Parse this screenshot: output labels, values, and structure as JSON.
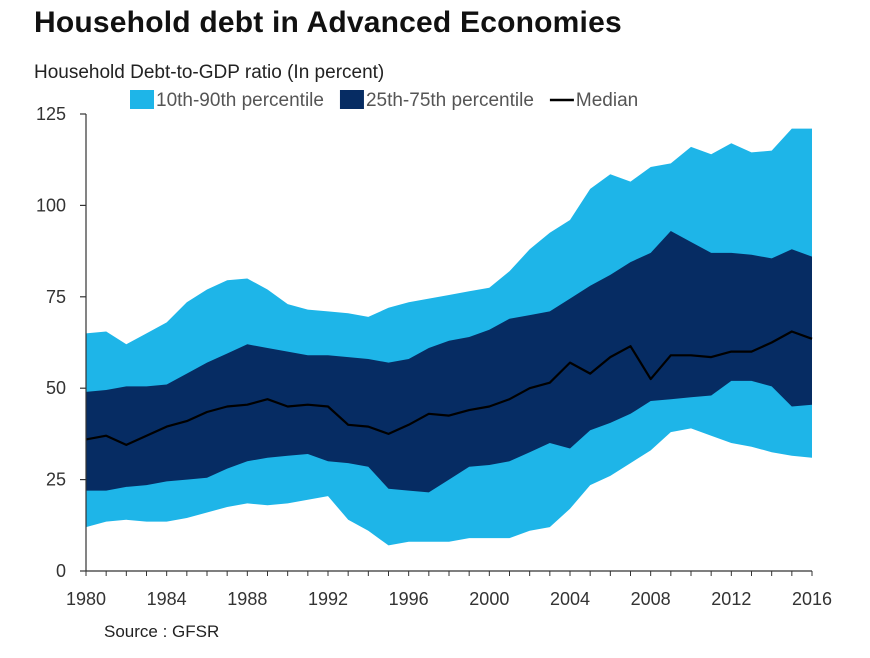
{
  "header": {
    "title": "Household debt in Advanced Economies",
    "subtitle": "Household Debt-to-GDP ratio (In percent)"
  },
  "footer": {
    "source": "Source : GFSR"
  },
  "colors": {
    "outer_band": "#1eb5e8",
    "inner_band": "#062c63",
    "median": "#000000",
    "axis": "#333333"
  },
  "chart_data": {
    "type": "area",
    "title": "Household debt in Advanced Economies",
    "ylabel": "Household Debt-to-GDP ratio (In percent)",
    "xlabel": "",
    "ylim": [
      0,
      125
    ],
    "xlim": [
      1980,
      2016
    ],
    "xticks": [
      1980,
      1984,
      1988,
      1992,
      1996,
      2000,
      2004,
      2008,
      2012,
      2016
    ],
    "yticks": [
      0,
      25,
      50,
      75,
      100,
      125
    ],
    "legend_position": "top",
    "x": [
      1980,
      1981,
      1982,
      1983,
      1984,
      1985,
      1986,
      1987,
      1988,
      1989,
      1990,
      1991,
      1992,
      1993,
      1994,
      1995,
      1996,
      1997,
      1998,
      1999,
      2000,
      2001,
      2002,
      2003,
      2004,
      2005,
      2006,
      2007,
      2008,
      2009,
      2010,
      2011,
      2012,
      2013,
      2014,
      2015,
      2016
    ],
    "series": [
      {
        "name": "10th-90th percentile",
        "kind": "band",
        "lower": [
          12,
          13.5,
          14,
          13.5,
          13.5,
          14.5,
          16,
          17.5,
          18.5,
          18,
          18.5,
          19.5,
          20.5,
          14,
          11,
          7,
          8,
          8,
          8,
          9,
          9,
          9,
          11,
          12,
          17,
          23.5,
          26,
          29.5,
          33,
          38,
          39,
          37,
          35,
          34,
          32.5,
          31.5,
          31
        ],
        "upper": [
          65,
          65.5,
          62,
          65,
          68,
          73.5,
          77,
          79.5,
          80,
          77,
          73,
          71.5,
          71,
          70.5,
          69.5,
          72,
          73.5,
          74.5,
          75.5,
          76.5,
          77.5,
          82,
          88,
          92.5,
          96,
          104.5,
          108.5,
          106.5,
          110.5,
          111.5,
          116,
          114,
          117,
          114.5,
          115,
          121,
          121
        ]
      },
      {
        "name": "25th-75th percentile",
        "kind": "band",
        "lower": [
          22,
          22,
          23,
          23.5,
          24.5,
          25,
          25.5,
          28,
          30,
          31,
          31.5,
          32,
          30,
          29.5,
          28.5,
          22.5,
          22,
          21.5,
          25,
          28.5,
          29,
          30,
          32.5,
          35,
          33.5,
          38.5,
          40.5,
          43,
          46.5,
          47,
          47.5,
          48,
          52,
          52,
          50.5,
          45,
          45.5
        ],
        "upper": [
          49,
          49.5,
          50.5,
          50.5,
          51,
          54,
          57,
          59.5,
          62,
          61,
          60,
          59,
          59,
          58.5,
          58,
          57,
          58,
          61,
          63,
          64,
          66,
          69,
          70,
          71,
          74.5,
          78,
          81,
          84.5,
          87,
          93,
          90,
          87,
          87,
          86.5,
          85.5,
          88,
          86
        ]
      },
      {
        "name": "Median",
        "kind": "line",
        "values": [
          36,
          37,
          34.5,
          37,
          39.5,
          41,
          43.5,
          45,
          45.5,
          47,
          45,
          45.5,
          45,
          40,
          39.5,
          37.5,
          40,
          43,
          42.5,
          44,
          45,
          47,
          50,
          51.5,
          57,
          54,
          58.5,
          61.5,
          52.5,
          59,
          59,
          58.5,
          60,
          60,
          62.5,
          65.5,
          63.5
        ]
      }
    ]
  }
}
